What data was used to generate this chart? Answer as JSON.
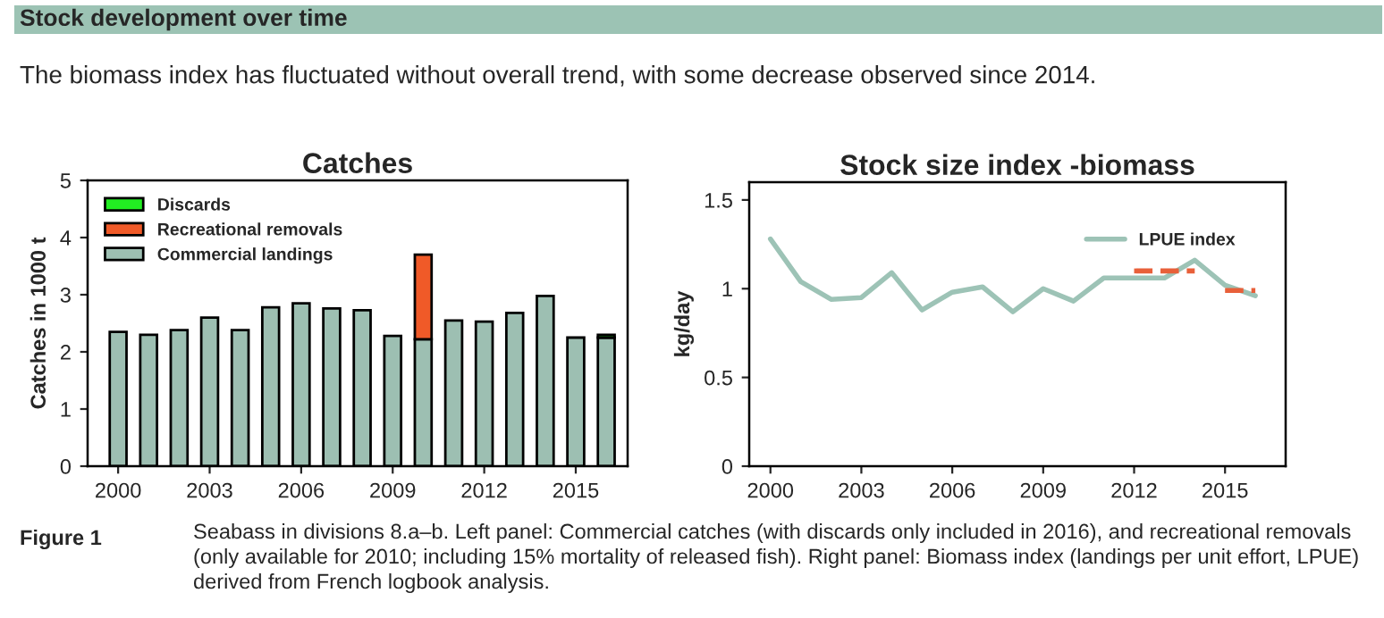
{
  "chart_data": [
    {
      "type": "bar",
      "title": "Catches",
      "ylabel": "Catches in 1000 t",
      "stacked": true,
      "legend": "top left",
      "annotations": [
        "Stock development over time",
        "The biomass index has fluctuated without overall trend, with some decrease observed since 2014."
      ],
      "x": [
        2000,
        2001,
        2002,
        2003,
        2004,
        2005,
        2006,
        2007,
        2008,
        2009,
        2010,
        2011,
        2012,
        2013,
        2014,
        2015,
        2016
      ],
      "xlim": [
        1999,
        2016.7
      ],
      "xticks": [
        2000,
        2003,
        2006,
        2009,
        2012,
        2015
      ],
      "ylim": [
        0,
        5
      ],
      "yticks": [
        0,
        1,
        2,
        3,
        4,
        5
      ],
      "series": [
        {
          "name": "Commercial landings",
          "color": "#9dbfb2",
          "values": [
            2.35,
            2.3,
            2.38,
            2.6,
            2.38,
            2.78,
            2.85,
            2.76,
            2.73,
            2.28,
            2.22,
            2.55,
            2.53,
            2.68,
            2.98,
            2.25,
            2.25
          ]
        },
        {
          "name": "Recreational removals",
          "color": "#f05a28",
          "values": [
            null,
            null,
            null,
            null,
            null,
            null,
            null,
            null,
            null,
            null,
            1.48,
            null,
            null,
            null,
            null,
            null,
            null
          ]
        },
        {
          "name": "Discards",
          "color": "#22ee22",
          "values": [
            null,
            null,
            null,
            null,
            null,
            null,
            null,
            null,
            null,
            null,
            null,
            null,
            null,
            null,
            null,
            null,
            0.05
          ]
        }
      ]
    },
    {
      "type": "line",
      "title": "Stock size index -biomass",
      "ylabel": "kg/day",
      "legend": "top right",
      "annotations": [
        "Figure 1",
        "Seabass in divisions 8.a–b. Left panel: Commercial catches (with discards only included in 2016), and recreational removals (only available for 2010; including 15% mortality of released fish). Right panel: Biomass index (landings per unit effort, LPUE) derived from French logbook analysis."
      ],
      "x": [
        2000,
        2001,
        2002,
        2003,
        2004,
        2005,
        2006,
        2007,
        2008,
        2009,
        2010,
        2011,
        2012,
        2013,
        2014,
        2015,
        2016
      ],
      "xlim": [
        1999.3,
        2017
      ],
      "xticks": [
        2000,
        2003,
        2006,
        2009,
        2012,
        2015
      ],
      "ylim": [
        0,
        1.6
      ],
      "yticks": [
        0,
        0.5,
        1,
        1.5
      ],
      "series": [
        {
          "name": "LPUE index",
          "color": "#9dc3b6",
          "values": [
            1.28,
            1.04,
            0.94,
            0.95,
            1.09,
            0.88,
            0.98,
            1.01,
            0.87,
            1.0,
            0.93,
            1.06,
            1.06,
            1.06,
            1.16,
            1.02,
            0.96
          ]
        },
        {
          "color": "#e8603a",
          "line_style": "dashed",
          "x": [
            2012,
            2014
          ],
          "values": [
            1.1,
            1.1
          ]
        },
        {
          "color": "#e8603a",
          "line_style": "dashed",
          "x": [
            2015,
            2016
          ],
          "values": [
            0.99,
            0.99
          ]
        }
      ]
    }
  ]
}
